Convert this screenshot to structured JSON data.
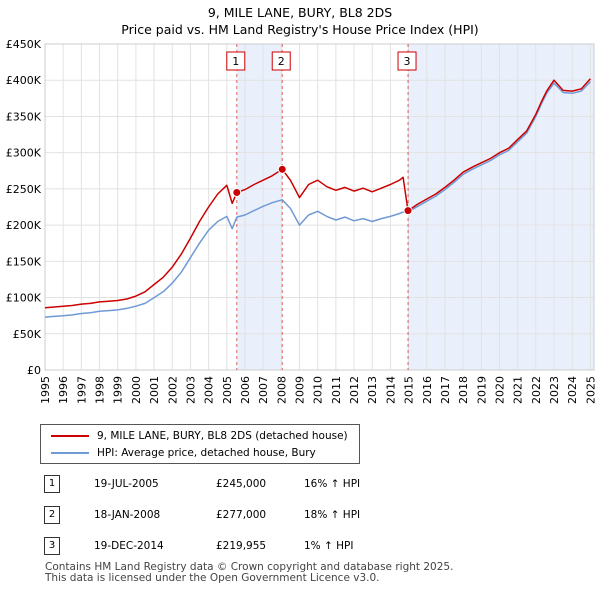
{
  "chart_data": {
    "type": "line",
    "title": "9, MILE LANE, BURY, BL8 2DS",
    "subtitle": "Price paid vs. HM Land Registry's House Price Index (HPI)",
    "xlim": [
      1995,
      2025.2
    ],
    "ylim": [
      0,
      450000
    ],
    "y_ticks": [
      {
        "value": 0,
        "label": "£0"
      },
      {
        "value": 50000,
        "label": "£50K"
      },
      {
        "value": 100000,
        "label": "£100K"
      },
      {
        "value": 150000,
        "label": "£150K"
      },
      {
        "value": 200000,
        "label": "£200K"
      },
      {
        "value": 250000,
        "label": "£250K"
      },
      {
        "value": 300000,
        "label": "£300K"
      },
      {
        "value": 350000,
        "label": "£350K"
      },
      {
        "value": 400000,
        "label": "£400K"
      },
      {
        "value": 450000,
        "label": "£450K"
      }
    ],
    "x_ticks": [
      "1995",
      "1996",
      "1997",
      "1998",
      "1999",
      "2000",
      "2001",
      "2002",
      "2003",
      "2004",
      "2005",
      "2006",
      "2007",
      "2008",
      "2009",
      "2010",
      "2011",
      "2012",
      "2013",
      "2014",
      "2015",
      "2016",
      "2017",
      "2018",
      "2019",
      "2020",
      "2021",
      "2022",
      "2023",
      "2024",
      "2025"
    ],
    "grid": true,
    "highlight_ranges": [
      [
        2005.55,
        2008.05
      ],
      [
        2014.97,
        2025.2
      ]
    ],
    "series": [
      {
        "name": "9, MILE LANE, BURY, BL8 2DS (detached house)",
        "color": "#cc0000",
        "x": [
          1995.0,
          1995.5,
          1996.0,
          1996.5,
          1997.0,
          1997.5,
          1998.0,
          1998.5,
          1999.0,
          1999.5,
          2000.0,
          2000.5,
          2001.0,
          2001.5,
          2002.0,
          2002.5,
          2003.0,
          2003.5,
          2004.0,
          2004.5,
          2005.0,
          2005.3,
          2005.55,
          2006.0,
          2006.5,
          2007.0,
          2007.5,
          2008.05,
          2008.5,
          2009.0,
          2009.5,
          2010.0,
          2010.5,
          2011.0,
          2011.5,
          2012.0,
          2012.5,
          2013.0,
          2013.5,
          2014.0,
          2014.5,
          2014.7,
          2014.97,
          2015.5,
          2016.0,
          2016.5,
          2017.0,
          2017.5,
          2018.0,
          2018.5,
          2019.0,
          2019.5,
          2020.0,
          2020.5,
          2021.0,
          2021.5,
          2022.0,
          2022.3,
          2022.6,
          2023.0,
          2023.5,
          2024.0,
          2024.5,
          2025.0
        ],
        "y": [
          86000,
          87000,
          88000,
          89000,
          91000,
          92000,
          94000,
          95000,
          96000,
          98000,
          102000,
          108000,
          118000,
          128000,
          142000,
          160000,
          182000,
          205000,
          225000,
          243000,
          255000,
          230000,
          245000,
          249000,
          256000,
          262000,
          268000,
          277000,
          262000,
          238000,
          256000,
          262000,
          253000,
          248000,
          252000,
          247000,
          251000,
          246000,
          251000,
          256000,
          262000,
          266000,
          219955,
          229000,
          236000,
          243000,
          252000,
          262000,
          273000,
          280000,
          286000,
          292000,
          300000,
          306000,
          318000,
          330000,
          353000,
          370000,
          385000,
          400000,
          386000,
          385000,
          388000,
          402000
        ]
      },
      {
        "name": "HPI: Average price, detached house, Bury",
        "color": "#6f9ad6",
        "x": [
          1995.0,
          1995.5,
          1996.0,
          1996.5,
          1997.0,
          1997.5,
          1998.0,
          1998.5,
          1999.0,
          1999.5,
          2000.0,
          2000.5,
          2001.0,
          2001.5,
          2002.0,
          2002.5,
          2003.0,
          2003.5,
          2004.0,
          2004.5,
          2005.0,
          2005.3,
          2005.55,
          2006.0,
          2006.5,
          2007.0,
          2007.5,
          2008.05,
          2008.5,
          2009.0,
          2009.5,
          2010.0,
          2010.5,
          2011.0,
          2011.5,
          2012.0,
          2012.5,
          2013.0,
          2013.5,
          2014.0,
          2014.5,
          2014.7,
          2014.97,
          2015.5,
          2016.0,
          2016.5,
          2017.0,
          2017.5,
          2018.0,
          2018.5,
          2019.0,
          2019.5,
          2020.0,
          2020.5,
          2021.0,
          2021.5,
          2022.0,
          2022.3,
          2022.6,
          2023.0,
          2023.5,
          2024.0,
          2024.5,
          2025.0
        ],
        "y": [
          73000,
          74000,
          75000,
          76000,
          78000,
          79000,
          81000,
          82000,
          83000,
          85000,
          88000,
          92000,
          100000,
          108000,
          120000,
          135000,
          155000,
          175000,
          193000,
          205000,
          212000,
          195000,
          211000,
          214000,
          220000,
          226000,
          231000,
          235000,
          223000,
          200000,
          214000,
          219000,
          212000,
          207000,
          211000,
          206000,
          209000,
          205000,
          209000,
          212000,
          216000,
          218000,
          218000,
          226000,
          233000,
          240000,
          249000,
          259000,
          270000,
          277000,
          283000,
          289000,
          297000,
          303000,
          315000,
          327000,
          350000,
          367000,
          382000,
          396000,
          383000,
          382000,
          385000,
          398000
        ]
      }
    ],
    "transactions": [
      {
        "label": "1",
        "date": "19-JUL-2005",
        "year": 2005.55,
        "price": 245000,
        "price_text": "£245,000",
        "hpi_text": "16% ↑ HPI"
      },
      {
        "label": "2",
        "date": "18-JAN-2008",
        "year": 2008.05,
        "price": 277000,
        "price_text": "£277,000",
        "hpi_text": "18% ↑ HPI"
      },
      {
        "label": "3",
        "date": "19-DEC-2014",
        "year": 2014.97,
        "price": 219955,
        "price_text": "£219,955",
        "hpi_text": "1% ↑ HPI"
      }
    ]
  },
  "legend": {
    "price_label": "9, MILE LANE, BURY, BL8 2DS (detached house)",
    "hpi_label": "HPI: Average price, detached house, Bury"
  },
  "footer": {
    "line1": "Contains HM Land Registry data © Crown copyright and database right 2025.",
    "line2": "This data is licensed under the Open Government Licence v3.0."
  },
  "colors": {
    "price": "#cc0000",
    "hpi": "#6f9ad6",
    "highlight": "#eaf0fb",
    "grid": "#e2e2e2"
  }
}
